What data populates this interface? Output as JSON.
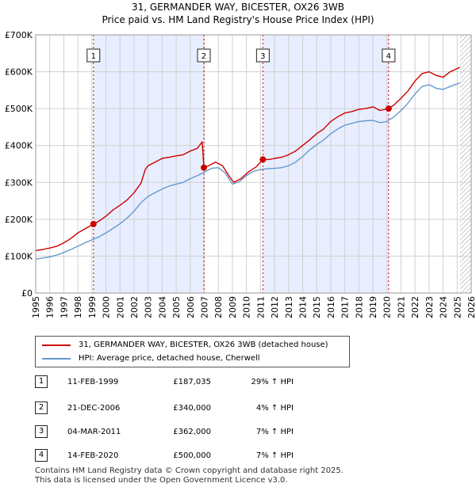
{
  "title_line1": "31, GERMANDER WAY, BICESTER, OX26 3WB",
  "title_line2": "Price paid vs. HM Land Registry's House Price Index (HPI)",
  "colors": {
    "property": "#cc0000",
    "hpi": "#6699cc",
    "shade": "#e8eeff",
    "grid": "#d0d0d0"
  },
  "chart_data": {
    "type": "line",
    "title": "31, GERMANDER WAY, BICESTER, OX26 3WB — Price paid vs. HM Land Registry's House Price Index (HPI)",
    "xlim": [
      1995,
      2026
    ],
    "ylim": [
      0,
      700000
    ],
    "x_ticks": [
      "1995",
      "1996",
      "1997",
      "1998",
      "1999",
      "2000",
      "2001",
      "2002",
      "2003",
      "2004",
      "2005",
      "2006",
      "2007",
      "2008",
      "2009",
      "2010",
      "2011",
      "2012",
      "2013",
      "2014",
      "2015",
      "2016",
      "2017",
      "2018",
      "2019",
      "2020",
      "2021",
      "2022",
      "2023",
      "2024",
      "2025",
      "2026"
    ],
    "y_ticks": [
      {
        "value": 0,
        "label": "£0"
      },
      {
        "value": 100000,
        "label": "£100K"
      },
      {
        "value": 200000,
        "label": "£200K"
      },
      {
        "value": 300000,
        "label": "£300K"
      },
      {
        "value": 400000,
        "label": "£400K"
      },
      {
        "value": 500000,
        "label": "£500K"
      },
      {
        "value": 600000,
        "label": "£600K"
      },
      {
        "value": 700000,
        "label": "£700K"
      }
    ],
    "shaded_ranges": [
      [
        1999.11,
        2006.97
      ],
      [
        2011.17,
        2020.12
      ]
    ],
    "hatched_from": 2025.2,
    "series": [
      {
        "name": "31, GERMANDER WAY, BICESTER, OX26 3WB (detached house)",
        "color": "#cc0000",
        "points": [
          [
            1995.0,
            115000
          ],
          [
            1995.5,
            118000
          ],
          [
            1996.0,
            122000
          ],
          [
            1996.5,
            127000
          ],
          [
            1997.0,
            136000
          ],
          [
            1997.5,
            148000
          ],
          [
            1998.0,
            163000
          ],
          [
            1998.5,
            174000
          ],
          [
            1999.11,
            187035
          ],
          [
            1999.5,
            195000
          ],
          [
            2000.0,
            208000
          ],
          [
            2000.5,
            225000
          ],
          [
            2001.0,
            238000
          ],
          [
            2001.5,
            252000
          ],
          [
            2002.0,
            272000
          ],
          [
            2002.5,
            298000
          ],
          [
            2002.8,
            335000
          ],
          [
            2003.0,
            345000
          ],
          [
            2003.5,
            355000
          ],
          [
            2004.0,
            365000
          ],
          [
            2004.5,
            368000
          ],
          [
            2005.0,
            372000
          ],
          [
            2005.5,
            375000
          ],
          [
            2006.0,
            385000
          ],
          [
            2006.5,
            392000
          ],
          [
            2006.85,
            410000
          ],
          [
            2006.97,
            340000
          ],
          [
            2007.3,
            345000
          ],
          [
            2007.8,
            355000
          ],
          [
            2008.3,
            345000
          ],
          [
            2008.8,
            315000
          ],
          [
            2009.1,
            300000
          ],
          [
            2009.6,
            310000
          ],
          [
            2010.2,
            330000
          ],
          [
            2010.7,
            342000
          ],
          [
            2011.17,
            362000
          ],
          [
            2011.6,
            362000
          ],
          [
            2012.0,
            365000
          ],
          [
            2012.5,
            368000
          ],
          [
            2013.0,
            375000
          ],
          [
            2013.5,
            385000
          ],
          [
            2014.0,
            400000
          ],
          [
            2014.5,
            415000
          ],
          [
            2015.0,
            432000
          ],
          [
            2015.5,
            445000
          ],
          [
            2016.0,
            465000
          ],
          [
            2016.5,
            478000
          ],
          [
            2017.0,
            488000
          ],
          [
            2017.5,
            492000
          ],
          [
            2018.0,
            498000
          ],
          [
            2018.5,
            500000
          ],
          [
            2019.0,
            505000
          ],
          [
            2019.5,
            495000
          ],
          [
            2020.12,
            500000
          ],
          [
            2020.5,
            510000
          ],
          [
            2021.0,
            528000
          ],
          [
            2021.5,
            548000
          ],
          [
            2022.0,
            575000
          ],
          [
            2022.5,
            595000
          ],
          [
            2023.0,
            600000
          ],
          [
            2023.5,
            590000
          ],
          [
            2024.0,
            585000
          ],
          [
            2024.5,
            600000
          ],
          [
            2025.2,
            612000
          ]
        ]
      },
      {
        "name": "HPI: Average price, detached house, Cherwell",
        "color": "#6699cc",
        "points": [
          [
            1995.0,
            92000
          ],
          [
            1995.5,
            95000
          ],
          [
            1996.0,
            98000
          ],
          [
            1996.5,
            103000
          ],
          [
            1997.0,
            110000
          ],
          [
            1997.5,
            118000
          ],
          [
            1998.0,
            127000
          ],
          [
            1998.5,
            136000
          ],
          [
            1999.0,
            144000
          ],
          [
            1999.5,
            152000
          ],
          [
            2000.0,
            163000
          ],
          [
            2000.5,
            175000
          ],
          [
            2001.0,
            188000
          ],
          [
            2001.5,
            203000
          ],
          [
            2002.0,
            222000
          ],
          [
            2002.5,
            245000
          ],
          [
            2003.0,
            262000
          ],
          [
            2003.5,
            272000
          ],
          [
            2004.0,
            282000
          ],
          [
            2004.5,
            290000
          ],
          [
            2005.0,
            295000
          ],
          [
            2005.5,
            300000
          ],
          [
            2006.0,
            310000
          ],
          [
            2006.5,
            318000
          ],
          [
            2007.0,
            328000
          ],
          [
            2007.5,
            338000
          ],
          [
            2008.0,
            340000
          ],
          [
            2008.5,
            325000
          ],
          [
            2009.0,
            295000
          ],
          [
            2009.5,
            302000
          ],
          [
            2010.0,
            318000
          ],
          [
            2010.5,
            330000
          ],
          [
            2011.0,
            335000
          ],
          [
            2011.5,
            337000
          ],
          [
            2012.0,
            338000
          ],
          [
            2012.5,
            340000
          ],
          [
            2013.0,
            345000
          ],
          [
            2013.5,
            355000
          ],
          [
            2014.0,
            370000
          ],
          [
            2014.5,
            388000
          ],
          [
            2015.0,
            402000
          ],
          [
            2015.5,
            415000
          ],
          [
            2016.0,
            432000
          ],
          [
            2016.5,
            445000
          ],
          [
            2017.0,
            455000
          ],
          [
            2017.5,
            460000
          ],
          [
            2018.0,
            465000
          ],
          [
            2018.5,
            467000
          ],
          [
            2019.0,
            468000
          ],
          [
            2019.5,
            462000
          ],
          [
            2020.0,
            465000
          ],
          [
            2020.5,
            478000
          ],
          [
            2021.0,
            495000
          ],
          [
            2021.5,
            515000
          ],
          [
            2022.0,
            540000
          ],
          [
            2022.5,
            560000
          ],
          [
            2023.0,
            565000
          ],
          [
            2023.5,
            555000
          ],
          [
            2024.0,
            552000
          ],
          [
            2024.5,
            560000
          ],
          [
            2025.2,
            570000
          ]
        ]
      }
    ],
    "sales": [
      {
        "id": "1",
        "x": 1999.11,
        "y": 187035
      },
      {
        "id": "2",
        "x": 2006.97,
        "y": 340000
      },
      {
        "id": "3",
        "x": 2011.17,
        "y": 362000
      },
      {
        "id": "4",
        "x": 2020.12,
        "y": 500000
      }
    ]
  },
  "legend": {
    "property_label": "31, GERMANDER WAY, BICESTER, OX26 3WB (detached house)",
    "hpi_label": "HPI: Average price, detached house, Cherwell"
  },
  "transactions": [
    {
      "id": "1",
      "date": "11-FEB-1999",
      "price": "£187,035",
      "hpi": "29% ↑ HPI"
    },
    {
      "id": "2",
      "date": "21-DEC-2006",
      "price": "£340,000",
      "hpi": "4% ↑ HPI"
    },
    {
      "id": "3",
      "date": "04-MAR-2011",
      "price": "£362,000",
      "hpi": "7% ↑ HPI"
    },
    {
      "id": "4",
      "date": "14-FEB-2020",
      "price": "£500,000",
      "hpi": "7% ↑ HPI"
    }
  ],
  "footer": {
    "line1": "Contains HM Land Registry data © Crown copyright and database right 2025.",
    "line2": "This data is licensed under the Open Government Licence v3.0."
  }
}
